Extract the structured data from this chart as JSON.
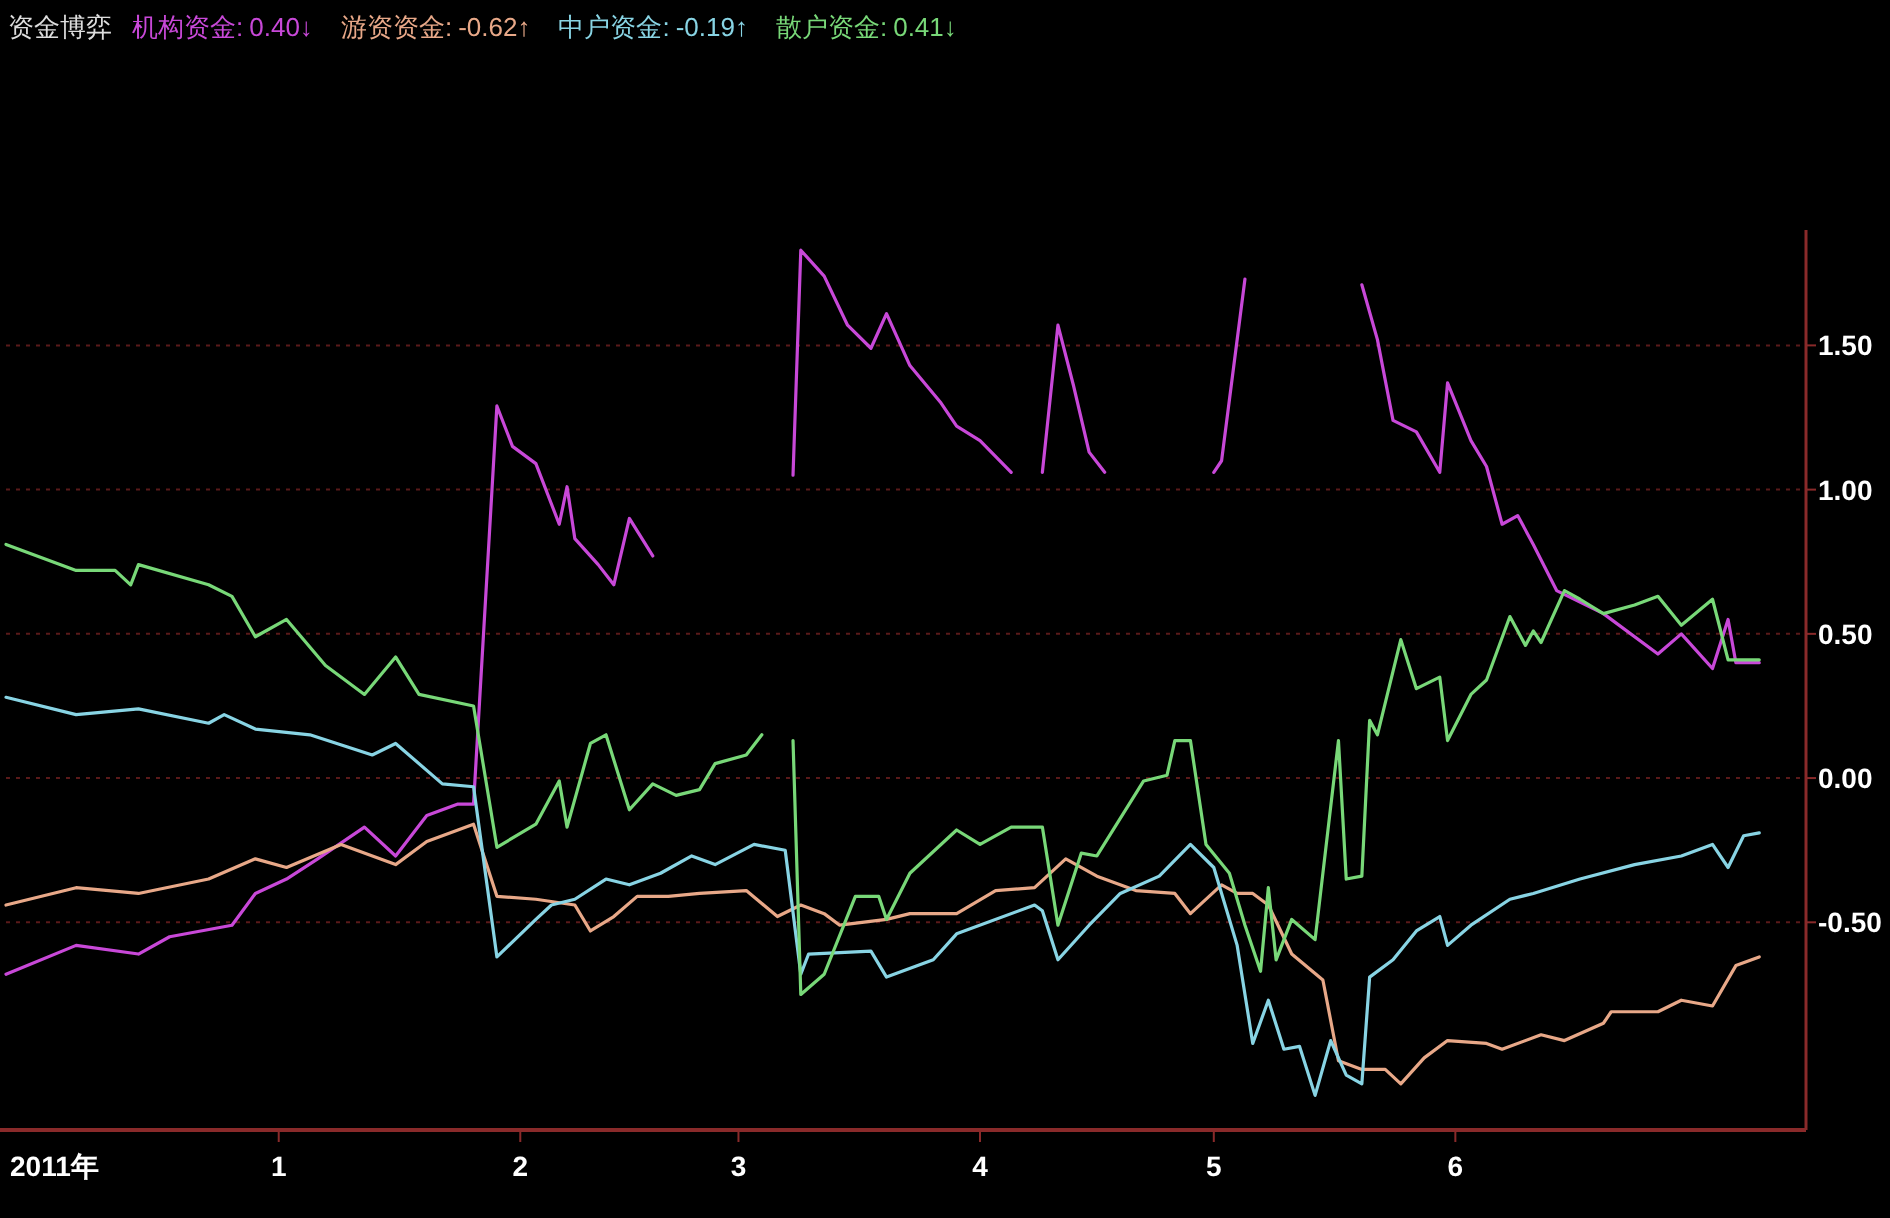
{
  "chart_data": {
    "type": "line",
    "title": "资金博弈",
    "legend": "top left",
    "grid": "y",
    "xlabel": "2011年",
    "xlim": [
      "2010-11-27",
      "2011-07-16"
    ],
    "xticks": [
      {
        "value": "2011-01-01",
        "label": "1"
      },
      {
        "value": "2011-02-01",
        "label": "2"
      },
      {
        "value": "2011-03-01",
        "label": "3"
      },
      {
        "value": "2011-04-01",
        "label": "4"
      },
      {
        "value": "2011-05-01",
        "label": "5"
      },
      {
        "value": "2011-06-01",
        "label": "6"
      }
    ],
    "ylim": [
      -1.22,
      1.9
    ],
    "yticks": [
      {
        "value": 1.5,
        "label": "1.50"
      },
      {
        "value": 1,
        "label": "1.00"
      },
      {
        "value": 0.5,
        "label": "0.50"
      },
      {
        "value": 0,
        "label": "0.00"
      },
      {
        "value": -0.5,
        "label": "-0.50"
      }
    ],
    "annotations": [
      "0.40↓",
      "-0.62↑",
      "-0.19↑",
      "0.41↓"
    ],
    "series": [
      {
        "name": "机构资金:",
        "color": "#c848d8",
        "x": [
          "2010-11-27",
          "2010-12-06",
          "2010-12-14",
          "2010-12-18",
          "2010-12-26",
          "2010-12-29",
          "2011-01-02",
          "2011-01-06",
          "2011-01-12",
          "2011-01-16",
          "2011-01-20",
          "2011-01-24",
          "2011-01-26",
          "2011-01-29",
          "2011-01-31",
          "2011-02-03",
          "2011-02-06",
          "2011-02-07",
          "2011-02-08",
          "2011-02-11",
          "2011-02-13",
          "2011-02-15",
          "2011-02-18",
          "2011-02-27",
          "2011-03-08",
          "2011-03-09",
          "2011-03-12",
          "2011-03-15",
          "2011-03-18",
          "2011-03-20",
          "2011-03-23",
          "2011-03-27",
          "2011-03-29",
          "2011-04-01",
          "2011-04-05",
          "2011-04-07",
          "2011-04-09",
          "2011-04-11",
          "2011-04-13",
          "2011-04-15",
          "2011-04-17",
          "2011-04-23",
          "2011-05-01",
          "2011-05-02",
          "2011-05-05",
          "2011-05-13",
          "2011-05-20",
          "2011-05-22",
          "2011-05-24",
          "2011-05-27",
          "2011-05-30",
          "2011-05-31",
          "2011-06-03",
          "2011-06-05",
          "2011-06-07",
          "2011-06-09",
          "2011-06-11",
          "2011-06-14",
          "2011-06-20",
          "2011-06-27",
          "2011-06-30",
          "2011-07-04",
          "2011-07-06",
          "2011-07-07",
          "2011-07-10"
        ],
        "values": [
          -0.68,
          -0.58,
          -0.61,
          -0.55,
          -0.51,
          -0.4,
          -0.35,
          -0.28,
          -0.17,
          -0.27,
          -0.13,
          -0.09,
          -0.09,
          1.29,
          1.15,
          1.09,
          0.88,
          1.01,
          0.83,
          0.74,
          0.67,
          0.9,
          0.77,
          null,
          1.05,
          1.83,
          1.74,
          1.57,
          1.49,
          1.61,
          1.43,
          1.3,
          1.22,
          1.17,
          1.06,
          null,
          1.06,
          1.57,
          1.36,
          1.13,
          1.06,
          null,
          1.06,
          1.1,
          1.73,
          null,
          1.71,
          1.52,
          1.24,
          1.2,
          1.06,
          1.37,
          1.17,
          1.08,
          0.88,
          0.91,
          0.81,
          0.65,
          0.57,
          0.43,
          0.5,
          0.38,
          0.55,
          0.4,
          0.4
        ]
      },
      {
        "name": "游资资金:",
        "color": "#e8a888",
        "x": [
          "2010-11-27",
          "2010-12-06",
          "2010-12-14",
          "2010-12-23",
          "2010-12-29",
          "2011-01-02",
          "2011-01-09",
          "2011-01-16",
          "2011-01-20",
          "2011-01-26",
          "2011-01-29",
          "2011-02-03",
          "2011-02-08",
          "2011-02-10",
          "2011-02-13",
          "2011-02-16",
          "2011-02-20",
          "2011-02-24",
          "2011-03-02",
          "2011-03-06",
          "2011-03-09",
          "2011-03-12",
          "2011-03-14",
          "2011-03-20",
          "2011-03-23",
          "2011-03-29",
          "2011-04-03",
          "2011-04-08",
          "2011-04-12",
          "2011-04-16",
          "2011-04-21",
          "2011-04-26",
          "2011-04-28",
          "2011-05-02",
          "2011-05-04",
          "2011-05-06",
          "2011-05-08",
          "2011-05-11",
          "2011-05-15",
          "2011-05-17",
          "2011-05-20",
          "2011-05-23",
          "2011-05-25",
          "2011-05-28",
          "2011-05-31",
          "2011-06-05",
          "2011-06-07",
          "2011-06-12",
          "2011-06-15",
          "2011-06-20",
          "2011-06-21",
          "2011-06-27",
          "2011-06-30",
          "2011-07-04",
          "2011-07-07",
          "2011-07-10"
        ],
        "values": [
          -0.44,
          -0.38,
          -0.4,
          -0.35,
          -0.28,
          -0.31,
          -0.23,
          -0.3,
          -0.22,
          -0.16,
          -0.41,
          -0.42,
          -0.44,
          -0.53,
          -0.48,
          -0.41,
          -0.41,
          -0.4,
          -0.39,
          -0.48,
          -0.44,
          -0.47,
          -0.51,
          -0.49,
          -0.47,
          -0.47,
          -0.39,
          -0.38,
          -0.28,
          -0.34,
          -0.39,
          -0.4,
          -0.47,
          -0.37,
          -0.4,
          -0.4,
          -0.44,
          -0.61,
          -0.7,
          -0.98,
          -1.01,
          -1.01,
          -1.06,
          -0.97,
          -0.91,
          -0.92,
          -0.94,
          -0.89,
          -0.91,
          -0.85,
          -0.81,
          -0.81,
          -0.77,
          -0.79,
          -0.65,
          -0.62
        ]
      },
      {
        "name": "中户资金:",
        "color": "#88d4e4",
        "x": [
          "2010-11-27",
          "2010-12-06",
          "2010-12-14",
          "2010-12-23",
          "2010-12-25",
          "2010-12-29",
          "2011-01-05",
          "2011-01-13",
          "2011-01-16",
          "2011-01-22",
          "2011-01-26",
          "2011-01-29",
          "2011-02-03",
          "2011-02-05",
          "2011-02-08",
          "2011-02-12",
          "2011-02-15",
          "2011-02-19",
          "2011-02-23",
          "2011-02-26",
          "2011-03-03",
          "2011-03-07",
          "2011-03-09",
          "2011-03-10",
          "2011-03-18",
          "2011-03-20",
          "2011-03-26",
          "2011-03-29",
          "2011-04-08",
          "2011-04-09",
          "2011-04-11",
          "2011-04-15",
          "2011-04-19",
          "2011-04-24",
          "2011-04-28",
          "2011-05-01",
          "2011-05-04",
          "2011-05-06",
          "2011-05-08",
          "2011-05-10",
          "2011-05-12",
          "2011-05-14",
          "2011-05-16",
          "2011-05-18",
          "2011-05-20",
          "2011-05-21",
          "2011-05-24",
          "2011-05-27",
          "2011-05-30",
          "2011-05-31",
          "2011-06-03",
          "2011-06-08",
          "2011-06-11",
          "2011-06-17",
          "2011-06-24",
          "2011-06-30",
          "2011-07-04",
          "2011-07-06",
          "2011-07-08",
          "2011-07-10"
        ],
        "values": [
          0.28,
          0.22,
          0.24,
          0.19,
          0.22,
          0.17,
          0.15,
          0.08,
          0.12,
          -0.02,
          -0.03,
          -0.62,
          -0.49,
          -0.44,
          -0.42,
          -0.35,
          -0.37,
          -0.33,
          -0.27,
          -0.3,
          -0.23,
          -0.25,
          -0.68,
          -0.61,
          -0.6,
          -0.69,
          -0.63,
          -0.54,
          -0.44,
          -0.46,
          -0.63,
          -0.51,
          -0.4,
          -0.34,
          -0.23,
          -0.31,
          -0.58,
          -0.92,
          -0.77,
          -0.94,
          -0.93,
          -1.1,
          -0.91,
          -1.03,
          -1.06,
          -0.69,
          -0.63,
          -0.53,
          -0.48,
          -0.58,
          -0.51,
          -0.42,
          -0.4,
          -0.35,
          -0.3,
          -0.27,
          -0.23,
          -0.31,
          -0.2,
          -0.19
        ]
      },
      {
        "name": "散户资金:",
        "color": "#78d878",
        "x": [
          "2010-11-27",
          "2010-12-06",
          "2010-12-11",
          "2010-12-13",
          "2010-12-14",
          "2010-12-23",
          "2010-12-26",
          "2010-12-29",
          "2011-01-02",
          "2011-01-07",
          "2011-01-12",
          "2011-01-16",
          "2011-01-19",
          "2011-01-26",
          "2011-01-29",
          "2011-02-03",
          "2011-02-06",
          "2011-02-07",
          "2011-02-10",
          "2011-02-12",
          "2011-02-15",
          "2011-02-18",
          "2011-02-21",
          "2011-02-24",
          "2011-02-26",
          "2011-03-02",
          "2011-03-04",
          "2011-03-06",
          "2011-03-08",
          "2011-03-09",
          "2011-03-12",
          "2011-03-16",
          "2011-03-19",
          "2011-03-20",
          "2011-03-23",
          "2011-03-29",
          "2011-04-01",
          "2011-04-05",
          "2011-04-09",
          "2011-04-11",
          "2011-04-14",
          "2011-04-16",
          "2011-04-22",
          "2011-04-25",
          "2011-04-26",
          "2011-04-28",
          "2011-04-30",
          "2011-05-03",
          "2011-05-05",
          "2011-05-07",
          "2011-05-08",
          "2011-05-09",
          "2011-05-11",
          "2011-05-14",
          "2011-05-17",
          "2011-05-18",
          "2011-05-20",
          "2011-05-21",
          "2011-05-22",
          "2011-05-25",
          "2011-05-27",
          "2011-05-30",
          "2011-05-31",
          "2011-06-03",
          "2011-06-05",
          "2011-06-08",
          "2011-06-10",
          "2011-06-11",
          "2011-06-12",
          "2011-06-15",
          "2011-06-17",
          "2011-06-20",
          "2011-06-24",
          "2011-06-27",
          "2011-06-30",
          "2011-07-04",
          "2011-07-06",
          "2011-07-10"
        ],
        "values": [
          0.81,
          0.72,
          0.72,
          0.67,
          0.74,
          0.67,
          0.63,
          0.49,
          0.55,
          0.39,
          0.29,
          0.42,
          0.29,
          0.25,
          -0.24,
          -0.16,
          -0.01,
          -0.17,
          0.12,
          0.15,
          -0.11,
          -0.02,
          -0.06,
          -0.04,
          0.05,
          0.08,
          0.15,
          null,
          0.13,
          -0.75,
          -0.68,
          -0.41,
          -0.41,
          -0.49,
          -0.33,
          -0.18,
          -0.23,
          -0.17,
          -0.17,
          -0.51,
          -0.26,
          -0.27,
          -0.01,
          0.01,
          0.13,
          0.13,
          -0.23,
          -0.33,
          -0.51,
          -0.67,
          -0.38,
          -0.63,
          -0.49,
          -0.56,
          0.13,
          -0.35,
          -0.34,
          0.2,
          0.15,
          0.48,
          0.31,
          0.35,
          0.13,
          0.29,
          0.34,
          0.56,
          0.46,
          0.51,
          0.47,
          0.65,
          0.62,
          0.57,
          0.6,
          0.63,
          0.53,
          0.62,
          0.41,
          0.41
        ]
      }
    ]
  }
}
